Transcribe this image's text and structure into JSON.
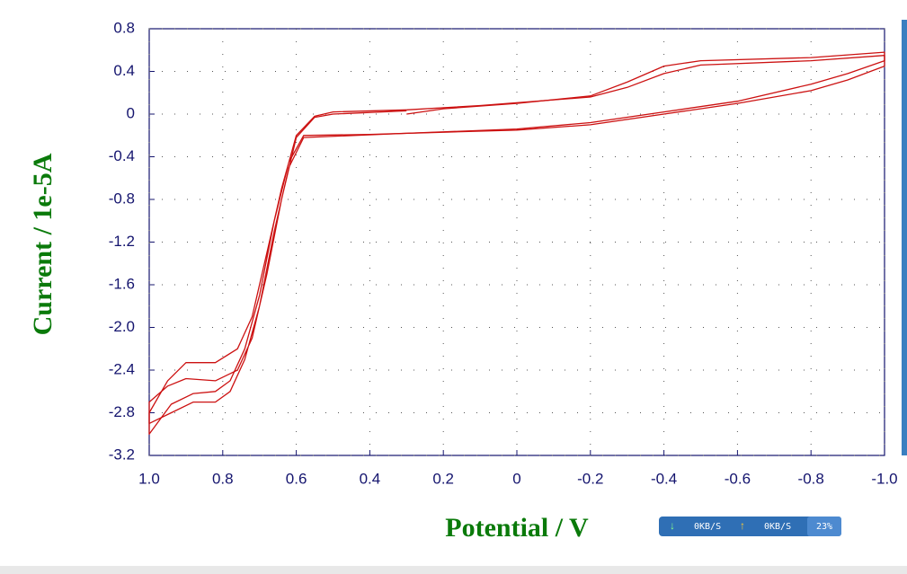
{
  "chart_data": {
    "type": "line",
    "xlabel": "Potential / V",
    "ylabel": "Current / 1e-5A",
    "xlim": [
      1.0,
      -1.0
    ],
    "ylim": [
      -3.2,
      0.8
    ],
    "xticks": [
      {
        "value": 1,
        "label": "1.0"
      },
      0.8,
      0.6,
      0.4,
      0.2,
      0,
      -0.2,
      -0.4,
      -0.6,
      -0.8,
      {
        "value": -1,
        "label": "-1.0"
      }
    ],
    "yticks": [
      0.8,
      0.4,
      0,
      -0.4,
      -0.8,
      -1.2,
      -1.6,
      {
        "value": -2,
        "label": "-2.0"
      },
      -2.4,
      -2.8,
      -3.2
    ],
    "grid": true,
    "series": [
      {
        "color": "#cc1111",
        "x": [
          0.3,
          0.2,
          0,
          -0.2,
          -0.3,
          -0.4,
          -0.5,
          -0.8,
          -1.0,
          -1.0,
          -0.9,
          -0.8,
          -0.6,
          -0.4,
          -0.2,
          0,
          0.2,
          0.4,
          0.58,
          0.62,
          0.66,
          0.7,
          0.74,
          0.78,
          0.82,
          0.88,
          0.94,
          1.0,
          1.0,
          0.95,
          0.9,
          0.82,
          0.76,
          0.72,
          0.68,
          0.64,
          0.6,
          0.55,
          0.5,
          0.3
        ],
        "values": [
          0.0,
          0.05,
          0.1,
          0.17,
          0.3,
          0.45,
          0.5,
          0.53,
          0.58,
          0.45,
          0.32,
          0.22,
          0.1,
          0.0,
          -0.1,
          -0.15,
          -0.17,
          -0.19,
          -0.2,
          -0.45,
          -1.0,
          -1.7,
          -2.2,
          -2.5,
          -2.6,
          -2.62,
          -2.72,
          -3.0,
          -2.8,
          -2.5,
          -2.33,
          -2.33,
          -2.2,
          -1.9,
          -1.3,
          -0.7,
          -0.2,
          -0.02,
          0.02,
          0.04
        ]
      },
      {
        "color": "#cc1111",
        "x": [
          0.3,
          0.1,
          -0.2,
          -0.3,
          -0.4,
          -0.5,
          -0.8,
          -1.0,
          -1.0,
          -0.9,
          -0.8,
          -0.6,
          -0.4,
          -0.2,
          0,
          0.3,
          0.58,
          0.62,
          0.66,
          0.7,
          0.74,
          0.78,
          0.82,
          0.88,
          0.94,
          1.0,
          1.0,
          0.95,
          0.9,
          0.82,
          0.76,
          0.72,
          0.68,
          0.64,
          0.6,
          0.55,
          0.5,
          0.3
        ],
        "values": [
          0.04,
          0.08,
          0.16,
          0.25,
          0.38,
          0.46,
          0.5,
          0.55,
          0.5,
          0.38,
          0.28,
          0.12,
          0.02,
          -0.08,
          -0.14,
          -0.18,
          -0.22,
          -0.5,
          -1.1,
          -1.8,
          -2.3,
          -2.6,
          -2.7,
          -2.7,
          -2.8,
          -2.9,
          -2.7,
          -2.55,
          -2.48,
          -2.5,
          -2.4,
          -2.1,
          -1.5,
          -0.8,
          -0.22,
          -0.03,
          0.0,
          0.03
        ]
      }
    ]
  },
  "status_widget": {
    "download": "0KB/S",
    "upload": "0KB/S",
    "cpu": "23%"
  }
}
